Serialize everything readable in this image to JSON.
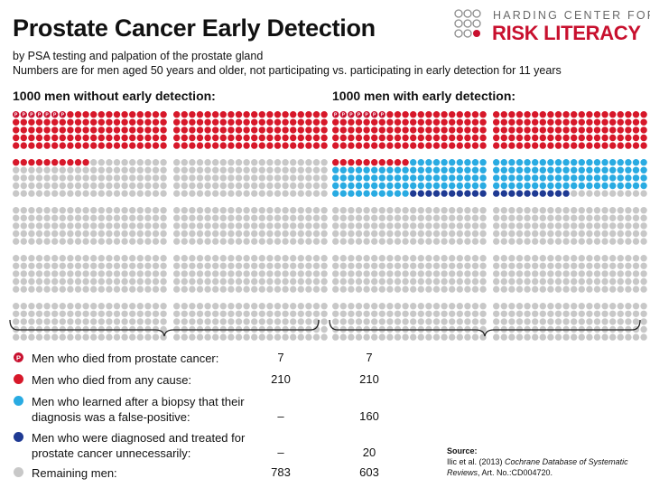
{
  "header": {
    "title": "Prostate Cancer Early Detection",
    "subtitle_1": "by PSA testing and palpation of the prostate gland",
    "subtitle_2": "Numbers are for men aged 50 years and older, not participating vs. participating in early detection for 11 years"
  },
  "logo": {
    "line1": "HARDING CENTER FOR",
    "line2": "RISK LITERACY",
    "accent_color": "#c8102e",
    "gray_color": "#6a6a6a"
  },
  "groups": [
    {
      "title": "1000 men without early detection:",
      "counts": {
        "prostate_cancer_deaths": 7,
        "any_cause_deaths": 210,
        "false_positive": 0,
        "overtreated": 0,
        "remaining": 783
      }
    },
    {
      "title": "1000 men with early detection:",
      "counts": {
        "prostate_cancer_deaths": 7,
        "any_cause_deaths": 210,
        "false_positive": 160,
        "overtreated": 20,
        "remaining": 603
      }
    }
  ],
  "icon_marker": "P",
  "colors": {
    "dark_red": "#c8102e",
    "red": "#d7182a",
    "light_blue": "#29abe2",
    "dark_blue": "#1f3a93",
    "gray": "#c8c8c8"
  },
  "legend": [
    {
      "icon": "p-circle-icon",
      "color": "#c8102e",
      "label": "Men who died from prostate cancer:",
      "value_a": "7",
      "value_b": "7"
    },
    {
      "icon": "red-dot-icon",
      "color": "#d7182a",
      "label": "Men who died from any cause:",
      "value_a": "210",
      "value_b": "210"
    },
    {
      "icon": "light-blue-dot-icon",
      "color": "#29abe2",
      "label": "Men who learned after a biopsy that their diagnosis was a false-positive:",
      "value_a": "–",
      "value_b": "160"
    },
    {
      "icon": "dark-blue-dot-icon",
      "color": "#1f3a93",
      "label": "Men who were diagnosed and treated for prostate cancer unnecessarily:",
      "value_a": "–",
      "value_b": "20"
    },
    {
      "icon": "gray-dot-icon",
      "color": "#c8c8c8",
      "label": "Remaining men:",
      "value_a": "783",
      "value_b": "603"
    }
  ],
  "source": {
    "heading": "Source:",
    "authors": "Ilic et al. (2013)",
    "journal": "Cochrane Database of Systematic Reviews",
    "reference": ", Art. No.:CD004720."
  }
}
